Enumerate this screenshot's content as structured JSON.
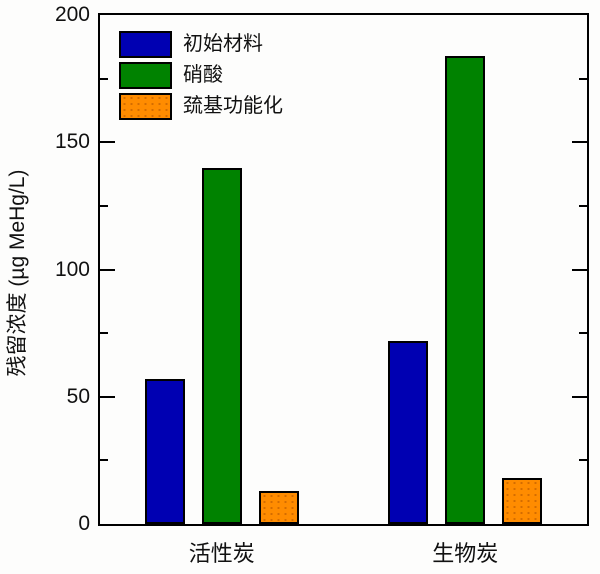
{
  "chart_data": {
    "type": "bar",
    "title": "",
    "categories": [
      "活性炭",
      "生物炭"
    ],
    "series": [
      {
        "name": "初始材料",
        "color": "#0000B2",
        "pattern": "solid",
        "values": [
          57,
          72
        ]
      },
      {
        "name": "硝酸",
        "color": "#008200",
        "pattern": "solid",
        "values": [
          140,
          184
        ]
      },
      {
        "name": "巯基功能化",
        "color": "#FF8C00",
        "pattern": "dots",
        "values": [
          13,
          18
        ]
      }
    ],
    "xlabel": "",
    "ylabel": "残留浓度 (µg MeHg/L)",
    "ylim": [
      0,
      200
    ],
    "yticks_major": [
      0,
      50,
      100,
      150,
      200
    ],
    "yticks_minor": [
      25,
      75,
      125,
      175
    ],
    "legend_position": "top-left",
    "grid": false,
    "axis_color": "#000000",
    "background_color": "#FDFDFC"
  }
}
